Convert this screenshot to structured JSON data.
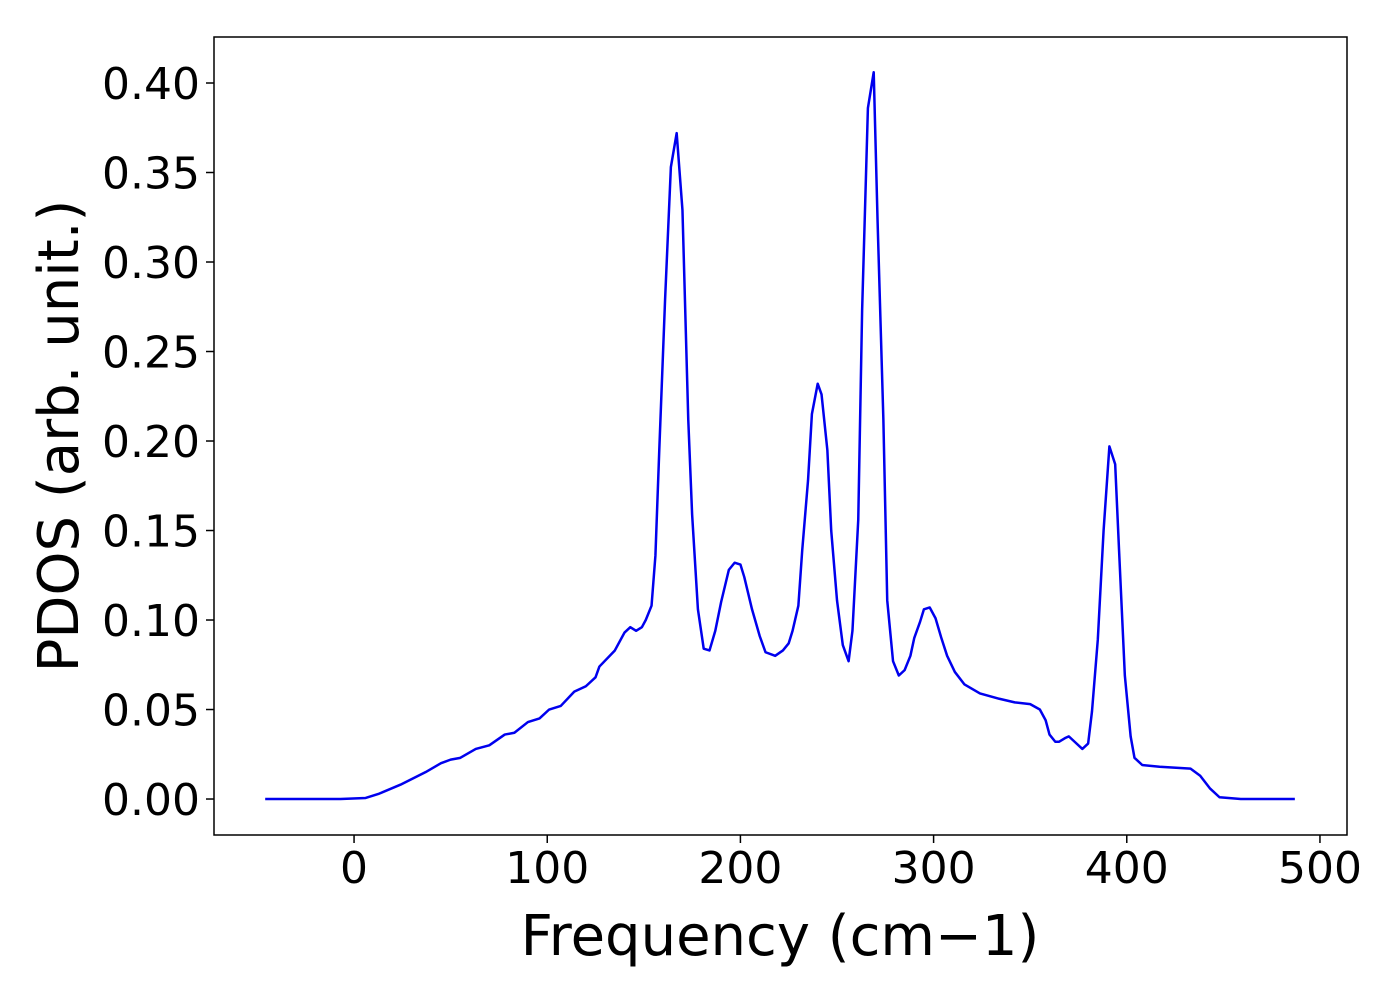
{
  "chart_data": {
    "type": "line",
    "xlabel": "Frequency (cm−1)",
    "ylabel": "PDOS (arb. unit.)",
    "xlim": [
      -72.5,
      514
    ],
    "ylim": [
      -0.0201,
      0.4257
    ],
    "xticks": [
      0,
      100,
      200,
      300,
      400,
      500
    ],
    "yticks": [
      {
        "value": 0,
        "label": "0.00"
      },
      {
        "value": 0.05,
        "label": "0.05"
      },
      {
        "value": 0.1,
        "label": "0.10"
      },
      {
        "value": 0.15,
        "label": "0.15"
      },
      {
        "value": 0.2,
        "label": "0.20"
      },
      {
        "value": 0.25,
        "label": "0.25"
      },
      {
        "value": 0.3,
        "label": "0.30"
      },
      {
        "value": 0.35,
        "label": "0.35"
      },
      {
        "value": 0.4,
        "label": "0.40"
      }
    ],
    "grid": false,
    "x": [
      -46,
      -7,
      6,
      13,
      24,
      37,
      45,
      50,
      55,
      63,
      70,
      78,
      83,
      90,
      96,
      101,
      107,
      114,
      120,
      125,
      127,
      135,
      140,
      143,
      146,
      149,
      151,
      154,
      156,
      158,
      161,
      164,
      167,
      170,
      173,
      175,
      178,
      181,
      184,
      187,
      190,
      194,
      197,
      200,
      202,
      206,
      210,
      213,
      218,
      222,
      225,
      227,
      230,
      232,
      235,
      237,
      240,
      242,
      245,
      247,
      250,
      253,
      256,
      258,
      261,
      263,
      266,
      269,
      271,
      274,
      276,
      279,
      282,
      285,
      288,
      290,
      293,
      295,
      298,
      301,
      304,
      307,
      311,
      316,
      324,
      334,
      342,
      350,
      355,
      358,
      360,
      363,
      365,
      368,
      370,
      373,
      377,
      380,
      382,
      385,
      388,
      391,
      394,
      396,
      399,
      402,
      404,
      408,
      417,
      433,
      438,
      443,
      448,
      459,
      487
    ],
    "series": [
      {
        "name": "PDOS",
        "color": "#0000ee",
        "values": [
          0,
          0,
          0.0006,
          0.003,
          0.008,
          0.015,
          0.02,
          0.022,
          0.023,
          0.028,
          0.03,
          0.036,
          0.037,
          0.043,
          0.045,
          0.05,
          0.052,
          0.06,
          0.063,
          0.068,
          0.074,
          0.083,
          0.093,
          0.096,
          0.094,
          0.096,
          0.1,
          0.108,
          0.136,
          0.195,
          0.279,
          0.353,
          0.372,
          0.329,
          0.212,
          0.159,
          0.106,
          0.084,
          0.083,
          0.094,
          0.11,
          0.128,
          0.132,
          0.131,
          0.124,
          0.106,
          0.091,
          0.082,
          0.08,
          0.083,
          0.087,
          0.094,
          0.108,
          0.139,
          0.178,
          0.215,
          0.232,
          0.226,
          0.195,
          0.15,
          0.111,
          0.086,
          0.077,
          0.094,
          0.156,
          0.273,
          0.386,
          0.406,
          0.323,
          0.212,
          0.111,
          0.077,
          0.069,
          0.072,
          0.08,
          0.09,
          0.099,
          0.106,
          0.107,
          0.101,
          0.09,
          0.08,
          0.071,
          0.064,
          0.059,
          0.056,
          0.054,
          0.053,
          0.05,
          0.044,
          0.036,
          0.032,
          0.032,
          0.034,
          0.035,
          0.032,
          0.028,
          0.031,
          0.049,
          0.089,
          0.15,
          0.197,
          0.187,
          0.139,
          0.069,
          0.035,
          0.023,
          0.019,
          0.018,
          0.017,
          0.013,
          0.006,
          0.001,
          0,
          0
        ]
      }
    ]
  }
}
